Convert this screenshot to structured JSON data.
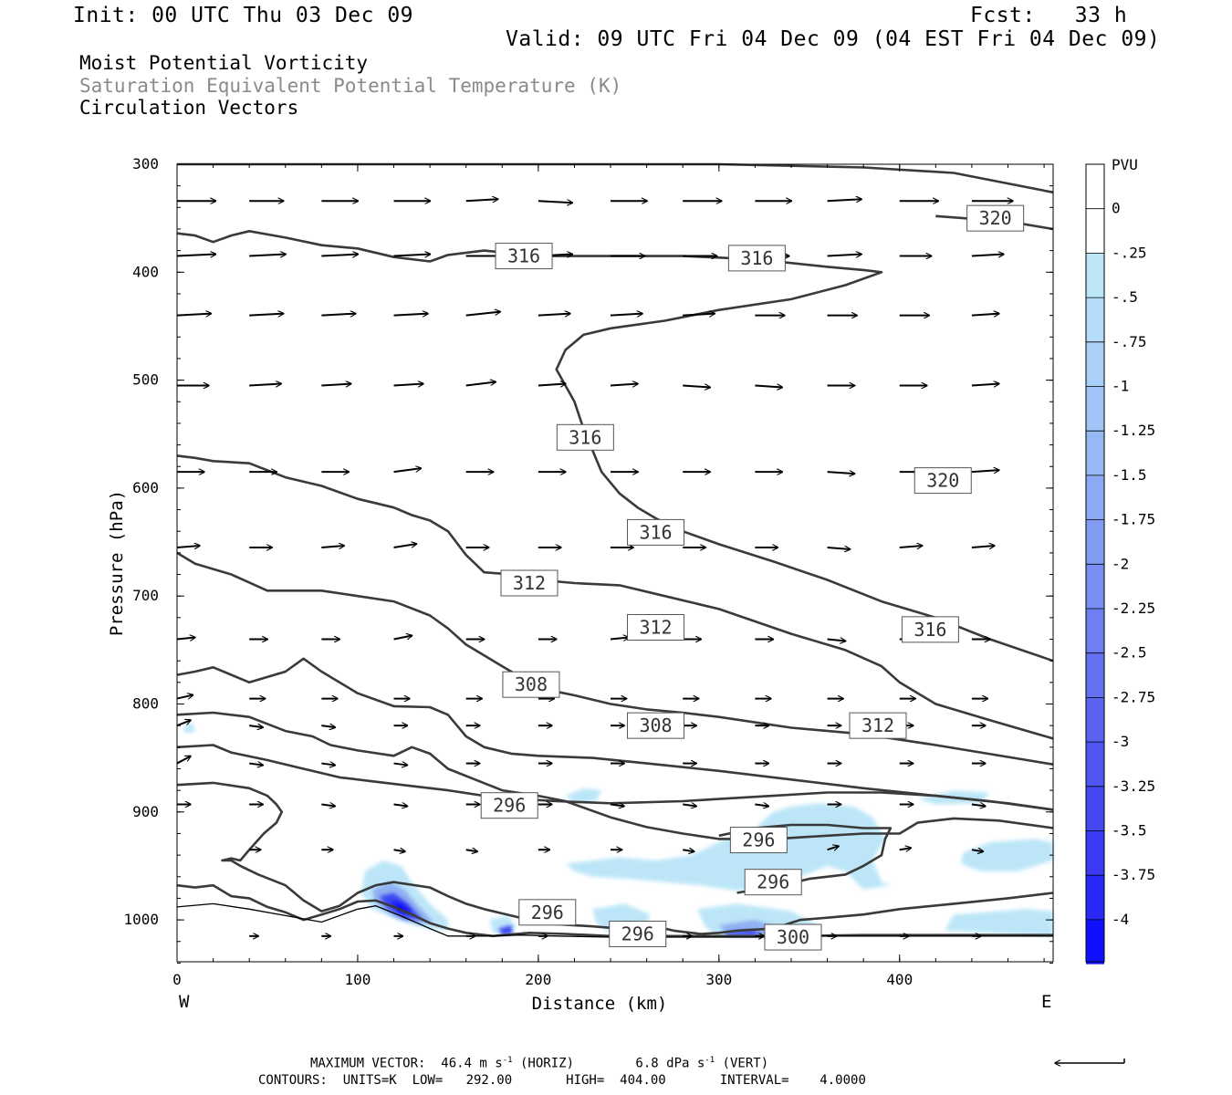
{
  "header": {
    "init": "Init: 00 UTC Thu 03 Dec 09",
    "fcst": "Fcst:   33 h",
    "valid": "Valid: 09 UTC Fri 04 Dec 09 (04 EST Fri 04 Dec 09)"
  },
  "fields": {
    "field1": "Moist Potential Vorticity",
    "field2": "Saturation Equivalent Potential Temperature (K)",
    "field3": "Circulation Vectors"
  },
  "footer": {
    "max_prefix": "MAXIMUM VECTOR:  46.4 m s",
    "max_mid": " (HORIZ)        6.8 dPa s",
    "max_suffix": " (VERT)",
    "exp": "-1",
    "contours": "CONTOURS:  UNITS=K  LOW=   292.00       HIGH=  404.00       INTERVAL=    4.0000"
  },
  "colors": {
    "contour": "#3a3a3a",
    "pv_light": "#bce6f8",
    "pv_mid": "#8fb0f2",
    "pv_dark": "#3e48f0",
    "pv_darkest": "#1010ff"
  },
  "chart_data": {
    "type": "cross-section",
    "xlabel": "Distance (km)",
    "ylabel": "Pressure (hPa)",
    "xlim": [
      0,
      485
    ],
    "ylim": [
      300,
      1040
    ],
    "y_scale": "linear-inverted",
    "x_ticks": [
      "0",
      "100",
      "200",
      "300",
      "400"
    ],
    "y_ticks": [
      "300",
      "400",
      "500",
      "600",
      "700",
      "800",
      "900",
      "1000"
    ],
    "x_end_labels": {
      "left": "W",
      "right": "E"
    },
    "colorbar": {
      "title": "PVU",
      "levels": [
        "0",
        "-.25",
        "-.5",
        "-.75",
        "-1",
        "-1.25",
        "-1.5",
        "-1.75",
        "-2",
        "-2.25",
        "-2.5",
        "-2.75",
        "-3",
        "-3.25",
        "-3.5",
        "-3.75",
        "-4"
      ],
      "colors": [
        "#ffffff",
        "#ffffff",
        "#bce6f8",
        "#b4dcf8",
        "#aad0f7",
        "#a0c4f6",
        "#96b8f5",
        "#8caaf4",
        "#829cf3",
        "#788ef2",
        "#6e80f1",
        "#6472f1",
        "#5a64f1",
        "#5056f1",
        "#4648f2",
        "#3c3af4",
        "#2a2af8",
        "#1010ff"
      ]
    },
    "contour_labels": [
      {
        "text": "320",
        "x": 453,
        "p": 350
      },
      {
        "text": "316",
        "x": 192,
        "p": 385
      },
      {
        "text": "316",
        "x": 321,
        "p": 387
      },
      {
        "text": "316",
        "x": 226,
        "p": 553
      },
      {
        "text": "316",
        "x": 265,
        "p": 641
      },
      {
        "text": "320",
        "x": 424,
        "p": 593
      },
      {
        "text": "312",
        "x": 195,
        "p": 688
      },
      {
        "text": "312",
        "x": 265,
        "p": 729
      },
      {
        "text": "316",
        "x": 417,
        "p": 731
      },
      {
        "text": "308",
        "x": 196,
        "p": 782
      },
      {
        "text": "308",
        "x": 265,
        "p": 820
      },
      {
        "text": "312",
        "x": 388,
        "p": 820
      },
      {
        "text": "296",
        "x": 184,
        "p": 894
      },
      {
        "text": "296",
        "x": 322,
        "p": 926
      },
      {
        "text": "296",
        "x": 330,
        "p": 965
      },
      {
        "text": "296",
        "x": 205,
        "p": 993
      },
      {
        "text": "296",
        "x": 255,
        "p": 1013
      },
      {
        "text": "300",
        "x": 341,
        "p": 1016
      }
    ]
  }
}
